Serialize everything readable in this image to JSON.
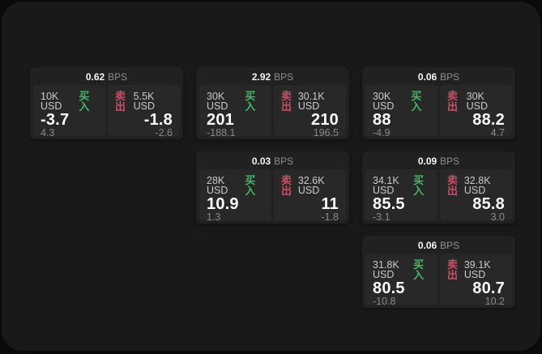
{
  "panel": {
    "bps_suffix": "BPS",
    "buy_label": "买入",
    "sell_label": "卖出"
  },
  "colors": {
    "buy_green": "#3fba60",
    "sell_red": "#cc4f64",
    "card_bg": "#212121",
    "tile_bg": "#282828",
    "panel_bg": "#191919",
    "amount_gray": "#c9c9c9",
    "suffix_gray": "#8e8e8e",
    "delta_gray": "#8a8a8a"
  },
  "cards": [
    {
      "row": 1,
      "col": 1,
      "bps": "0.62",
      "buy": {
        "amount": "10K USD",
        "value": "-3.7",
        "delta": "4.3"
      },
      "sell": {
        "amount": "5.5K USD",
        "value": "-1.8",
        "delta": "-2.6"
      }
    },
    {
      "row": 1,
      "col": 2,
      "bps": "2.92",
      "buy": {
        "amount": "30K USD",
        "value": "201",
        "delta": "-188.1"
      },
      "sell": {
        "amount": "30.1K USD",
        "value": "210",
        "delta": "196.5"
      }
    },
    {
      "row": 1,
      "col": 3,
      "bps": "0.06",
      "buy": {
        "amount": "30K USD",
        "value": "88",
        "delta": "-4.9"
      },
      "sell": {
        "amount": "30K USD",
        "value": "88.2",
        "delta": "4.7"
      }
    },
    {
      "row": 2,
      "col": 2,
      "bps": "0.03",
      "buy": {
        "amount": "28K USD",
        "value": "10.9",
        "delta": "1.3"
      },
      "sell": {
        "amount": "32.6K USD",
        "value": "11",
        "delta": "-1.8"
      }
    },
    {
      "row": 2,
      "col": 3,
      "bps": "0.09",
      "buy": {
        "amount": "34.1K USD",
        "value": "85.5",
        "delta": "-3.1"
      },
      "sell": {
        "amount": "32.8K USD",
        "value": "85.8",
        "delta": "3.0"
      }
    },
    {
      "row": 3,
      "col": 3,
      "bps": "0.06",
      "buy": {
        "amount": "31.8K USD",
        "value": "80.5",
        "delta": "-10.8"
      },
      "sell": {
        "amount": "39.1K USD",
        "value": "80.7",
        "delta": "10.2"
      }
    }
  ]
}
